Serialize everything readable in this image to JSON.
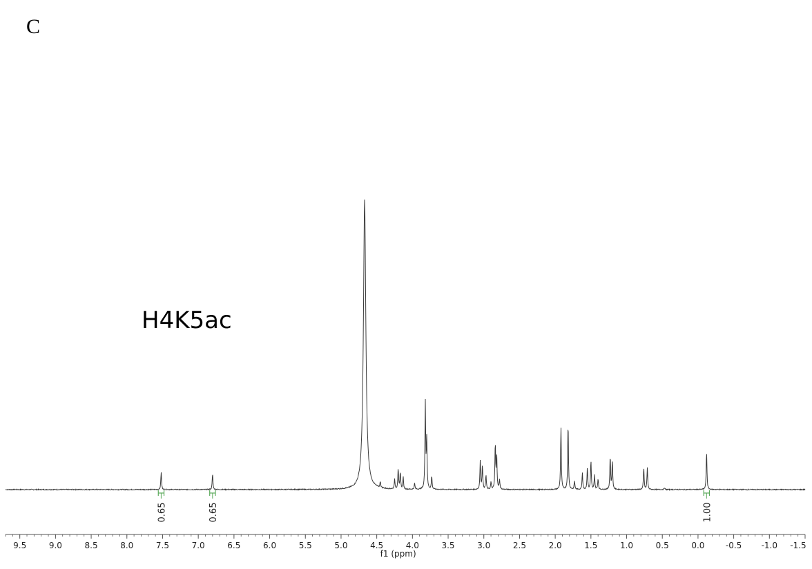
{
  "panel_label": "C",
  "chart_data": {
    "type": "line",
    "title": "",
    "sample_label": "H4K5ac",
    "xlabel": "f1 (ppm)",
    "ylabel": "",
    "xlim": [
      9.7,
      -1.5
    ],
    "x_reversed": true,
    "grid": false,
    "ticks": [
      9.5,
      9.0,
      8.5,
      8.0,
      7.5,
      7.0,
      6.5,
      6.0,
      5.5,
      5.0,
      4.5,
      4.0,
      3.5,
      3.0,
      2.5,
      2.0,
      1.5,
      1.0,
      0.5,
      0.0,
      -0.5,
      -1.0,
      -1.5
    ],
    "tick_labels": [
      "9.5",
      "9.0",
      "8.5",
      "8.0",
      "7.5",
      "7.0",
      "6.5",
      "6.0",
      "5.5",
      "5.0",
      "4.5",
      "4.0",
      "3.5",
      "3.0",
      "2.5",
      "2.0",
      "1.5",
      "1.0",
      "0.5",
      "0.0",
      "-0.5",
      "-1.0",
      "-1.5"
    ],
    "peaks": [
      {
        "ppm": 7.52,
        "height": 0.072
      },
      {
        "ppm": 6.8,
        "height": 0.065
      },
      {
        "ppm": 4.67,
        "height": 1.2,
        "width": 0.02
      },
      {
        "ppm": 4.45,
        "height": 0.025
      },
      {
        "ppm": 4.25,
        "height": 0.04
      },
      {
        "ppm": 4.2,
        "height": 0.085
      },
      {
        "ppm": 4.17,
        "height": 0.07
      },
      {
        "ppm": 4.13,
        "height": 0.05
      },
      {
        "ppm": 3.97,
        "height": 0.025
      },
      {
        "ppm": 3.82,
        "height": 0.36
      },
      {
        "ppm": 3.8,
        "height": 0.2
      },
      {
        "ppm": 3.73,
        "height": 0.055
      },
      {
        "ppm": 3.05,
        "height": 0.12
      },
      {
        "ppm": 3.02,
        "height": 0.1
      },
      {
        "ppm": 2.97,
        "height": 0.06
      },
      {
        "ppm": 2.9,
        "height": 0.03
      },
      {
        "ppm": 2.84,
        "height": 0.19
      },
      {
        "ppm": 2.82,
        "height": 0.14
      },
      {
        "ppm": 2.78,
        "height": 0.04
      },
      {
        "ppm": 1.92,
        "height": 0.26
      },
      {
        "ppm": 1.82,
        "height": 0.28
      },
      {
        "ppm": 1.73,
        "height": 0.035
      },
      {
        "ppm": 1.62,
        "height": 0.07
      },
      {
        "ppm": 1.55,
        "height": 0.09
      },
      {
        "ppm": 1.5,
        "height": 0.12
      },
      {
        "ppm": 1.45,
        "height": 0.06
      },
      {
        "ppm": 1.4,
        "height": 0.045
      },
      {
        "ppm": 1.23,
        "height": 0.14
      },
      {
        "ppm": 1.2,
        "height": 0.12
      },
      {
        "ppm": 0.76,
        "height": 0.09
      },
      {
        "ppm": 0.71,
        "height": 0.09
      },
      {
        "ppm": 0.47,
        "height": 0.008
      },
      {
        "ppm": -0.12,
        "height": 0.16
      }
    ],
    "integrals": [
      {
        "ppm_from": 7.56,
        "ppm_to": 7.48,
        "value": "0.65"
      },
      {
        "ppm_from": 6.84,
        "ppm_to": 6.76,
        "value": "0.65"
      },
      {
        "ppm_from": -0.08,
        "ppm_to": -0.16,
        "value": "1.00"
      }
    ],
    "colors": {
      "spectrum": "#3a3a3a",
      "integral": "#5aa95a",
      "axis": "#555555"
    }
  }
}
